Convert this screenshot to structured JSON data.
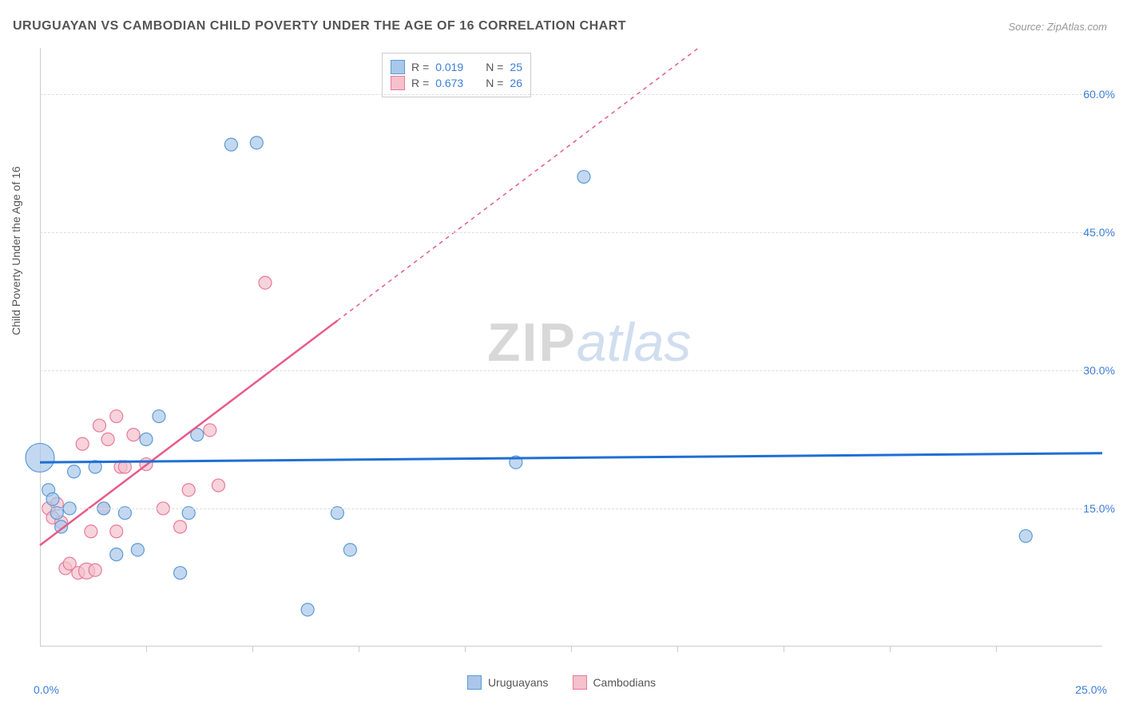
{
  "title": "URUGUAYAN VS CAMBODIAN CHILD POVERTY UNDER THE AGE OF 16 CORRELATION CHART",
  "source_label": "Source: ZipAtlas.com",
  "y_axis_label": "Child Poverty Under the Age of 16",
  "watermark": {
    "zip": "ZIP",
    "atlas": "atlas"
  },
  "chart": {
    "type": "scatter",
    "background_color": "#ffffff",
    "grid_color": "#dddddd",
    "axis_color": "#cccccc",
    "tick_text_color": "#3b7dd8",
    "label_text_color": "#555555",
    "xlim": [
      0,
      25
    ],
    "ylim": [
      0,
      65
    ],
    "x_ticks": [
      {
        "value": 0,
        "label": "0.0%"
      },
      {
        "value": 25,
        "label": "25.0%"
      }
    ],
    "x_minor_ticks": [
      2.5,
      5,
      7.5,
      10,
      12.5,
      15,
      17.5,
      20,
      22.5
    ],
    "y_ticks": [
      {
        "value": 15,
        "label": "15.0%"
      },
      {
        "value": 30,
        "label": "30.0%"
      },
      {
        "value": 45,
        "label": "45.0%"
      },
      {
        "value": 60,
        "label": "60.0%"
      }
    ],
    "legend_top": {
      "rows": [
        {
          "series": "uruguayans",
          "r_label": "R =",
          "r_value": "0.019",
          "n_label": "N =",
          "n_value": "25"
        },
        {
          "series": "cambodians",
          "r_label": "R =",
          "r_value": "0.673",
          "n_label": "N =",
          "n_value": "26"
        }
      ]
    },
    "legend_bottom": [
      {
        "series": "uruguayans",
        "label": "Uruguayans"
      },
      {
        "series": "cambodians",
        "label": "Cambodians"
      }
    ],
    "series": {
      "uruguayans": {
        "fill_color": "#a9c7ea",
        "stroke_color": "#5b9bd5",
        "line_color": "#1f6fd4",
        "marker_opacity": 0.7,
        "default_radius": 8,
        "points": [
          {
            "x": 0.0,
            "y": 20.5,
            "r": 18
          },
          {
            "x": 0.2,
            "y": 17.0
          },
          {
            "x": 0.3,
            "y": 16.0
          },
          {
            "x": 0.4,
            "y": 14.5
          },
          {
            "x": 0.7,
            "y": 15.0
          },
          {
            "x": 0.8,
            "y": 19.0
          },
          {
            "x": 1.3,
            "y": 19.5
          },
          {
            "x": 1.5,
            "y": 15.0
          },
          {
            "x": 1.8,
            "y": 10.0
          },
          {
            "x": 2.0,
            "y": 14.5
          },
          {
            "x": 2.3,
            "y": 10.5
          },
          {
            "x": 2.5,
            "y": 22.5
          },
          {
            "x": 2.8,
            "y": 25.0
          },
          {
            "x": 3.3,
            "y": 8.0
          },
          {
            "x": 3.5,
            "y": 14.5
          },
          {
            "x": 3.7,
            "y": 23.0
          },
          {
            "x": 4.5,
            "y": 54.5
          },
          {
            "x": 5.1,
            "y": 54.7
          },
          {
            "x": 6.3,
            "y": 4.0
          },
          {
            "x": 7.0,
            "y": 14.5
          },
          {
            "x": 7.3,
            "y": 10.5
          },
          {
            "x": 11.2,
            "y": 20.0
          },
          {
            "x": 12.8,
            "y": 51.0
          },
          {
            "x": 23.2,
            "y": 12.0
          },
          {
            "x": 0.5,
            "y": 13.0
          }
        ],
        "trend": {
          "x1": 0,
          "y1": 20.0,
          "x2": 25,
          "y2": 21.0,
          "dash": false
        }
      },
      "cambodians": {
        "fill_color": "#f4c1cc",
        "stroke_color": "#e87a99",
        "line_color": "#e85a88",
        "marker_opacity": 0.7,
        "default_radius": 8,
        "points": [
          {
            "x": 0.2,
            "y": 15.0
          },
          {
            "x": 0.3,
            "y": 14.0
          },
          {
            "x": 0.4,
            "y": 15.5
          },
          {
            "x": 0.5,
            "y": 13.5
          },
          {
            "x": 0.6,
            "y": 8.5
          },
          {
            "x": 0.7,
            "y": 9.0
          },
          {
            "x": 0.9,
            "y": 8.0
          },
          {
            "x": 1.0,
            "y": 22.0
          },
          {
            "x": 1.1,
            "y": 8.2,
            "r": 10
          },
          {
            "x": 1.2,
            "y": 12.5
          },
          {
            "x": 1.3,
            "y": 8.3
          },
          {
            "x": 1.4,
            "y": 24.0
          },
          {
            "x": 1.5,
            "y": 15.0
          },
          {
            "x": 1.6,
            "y": 22.5
          },
          {
            "x": 1.8,
            "y": 25.0
          },
          {
            "x": 1.8,
            "y": 12.5
          },
          {
            "x": 1.9,
            "y": 19.5
          },
          {
            "x": 2.0,
            "y": 19.5
          },
          {
            "x": 2.2,
            "y": 23.0
          },
          {
            "x": 2.5,
            "y": 19.8
          },
          {
            "x": 2.9,
            "y": 15.0
          },
          {
            "x": 3.3,
            "y": 13.0
          },
          {
            "x": 3.5,
            "y": 17.0
          },
          {
            "x": 4.0,
            "y": 23.5
          },
          {
            "x": 4.2,
            "y": 17.5
          },
          {
            "x": 5.3,
            "y": 39.5
          }
        ],
        "trend": {
          "x1": 0,
          "y1": 11.0,
          "x2": 15.5,
          "y2": 65.0,
          "dash_from_x": 7.0
        }
      }
    }
  }
}
